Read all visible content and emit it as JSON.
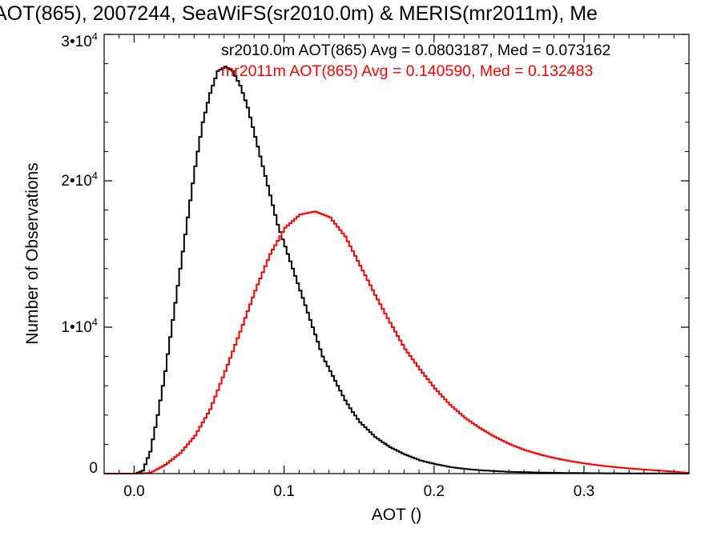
{
  "chart_data": {
    "type": "line",
    "title": "AOT(865), 2007244, SeaWiFS(sr2010.0m) & MERIS(mr2011m), Me",
    "xlabel": "AOT ()",
    "ylabel": "Number of Observations",
    "xlim": [
      -0.02,
      0.37
    ],
    "ylim": [
      0,
      30000
    ],
    "xticks": [
      {
        "value": 0.0,
        "label": "0.0"
      },
      {
        "value": 0.1,
        "label": "0.1"
      },
      {
        "value": 0.2,
        "label": "0.2"
      },
      {
        "value": 0.3,
        "label": "0.3"
      }
    ],
    "yticks": [
      {
        "value": 0,
        "label": "0",
        "sup": ""
      },
      {
        "value": 10000,
        "label": "1•10",
        "sup": "4"
      },
      {
        "value": 20000,
        "label": "2•10",
        "sup": "4"
      },
      {
        "value": 30000,
        "label": "3•10",
        "sup": "4"
      }
    ],
    "series": [
      {
        "color": "#000000",
        "x": [
          -0.02,
          0.0,
          0.005,
          0.01,
          0.015,
          0.02,
          0.025,
          0.03,
          0.035,
          0.04,
          0.045,
          0.05,
          0.055,
          0.06,
          0.065,
          0.07,
          0.075,
          0.08,
          0.085,
          0.09,
          0.095,
          0.1,
          0.105,
          0.11,
          0.115,
          0.12,
          0.125,
          0.13,
          0.135,
          0.14,
          0.145,
          0.15,
          0.16,
          0.17,
          0.18,
          0.19,
          0.2,
          0.21,
          0.22,
          0.23,
          0.24,
          0.25,
          0.27,
          0.29,
          0.31,
          0.33,
          0.35,
          0.37
        ],
        "y": [
          0,
          0,
          200,
          1500,
          4000,
          7000,
          10500,
          14000,
          17500,
          21000,
          24000,
          26000,
          27500,
          27800,
          27500,
          26500,
          25000,
          23000,
          21000,
          19000,
          17000,
          15500,
          14000,
          12500,
          11000,
          9500,
          8000,
          7000,
          6000,
          5000,
          4200,
          3500,
          2500,
          1800,
          1300,
          900,
          650,
          450,
          320,
          230,
          170,
          120,
          70,
          40,
          25,
          15,
          10,
          5
        ]
      },
      {
        "color": "#ff0000",
        "x": [
          -0.02,
          0.0,
          0.01,
          0.02,
          0.03,
          0.04,
          0.05,
          0.06,
          0.07,
          0.08,
          0.09,
          0.1,
          0.11,
          0.12,
          0.13,
          0.14,
          0.15,
          0.16,
          0.17,
          0.18,
          0.19,
          0.2,
          0.21,
          0.22,
          0.23,
          0.24,
          0.25,
          0.26,
          0.27,
          0.28,
          0.29,
          0.3,
          0.31,
          0.32,
          0.33,
          0.34,
          0.35,
          0.36,
          0.37
        ],
        "y": [
          0,
          0,
          50,
          600,
          1400,
          2600,
          4400,
          7000,
          9700,
          12500,
          15000,
          16800,
          17700,
          17900,
          17500,
          16200,
          14200,
          12200,
          10300,
          8500,
          7100,
          5800,
          4700,
          3800,
          3100,
          2500,
          2000,
          1600,
          1300,
          1050,
          850,
          690,
          550,
          440,
          350,
          270,
          200,
          130,
          40
        ]
      }
    ],
    "annotations": [
      {
        "text": "sr2010.0m AOT(865) Avg = 0.0803187, Med = 0.073162",
        "color": "#000000"
      },
      {
        "text": "mr2011m AOT(865) Avg = 0.140590, Med = 0.132483",
        "color": "#ff0000"
      }
    ]
  }
}
